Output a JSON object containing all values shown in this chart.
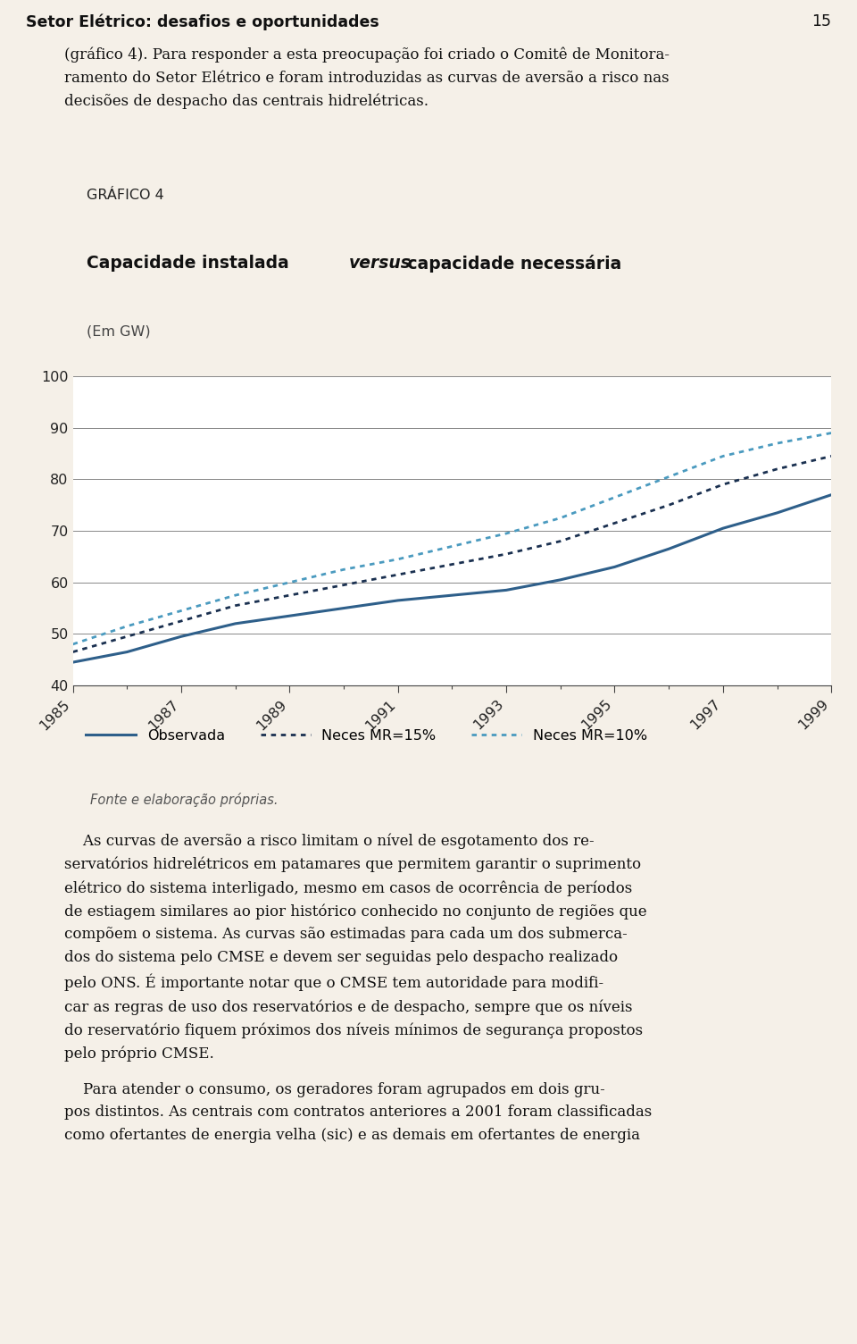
{
  "title_line1": "GRÁFICO 4",
  "title_line2_normal": "Capacidade instalada ",
  "title_line2_italic": "versus",
  "title_line2_end": " capacidade necessária",
  "subtitle": "(Em GW)",
  "fonte": "Fonte e elaboração próprias.",
  "years": [
    1985,
    1986,
    1987,
    1988,
    1989,
    1990,
    1991,
    1992,
    1993,
    1994,
    1995,
    1996,
    1997,
    1998,
    1999
  ],
  "observada": [
    44.5,
    46.5,
    49.5,
    52.0,
    53.5,
    55.0,
    56.5,
    57.5,
    58.5,
    60.5,
    63.0,
    66.5,
    70.5,
    73.5,
    77.0
  ],
  "neces_mr15": [
    46.5,
    49.5,
    52.5,
    55.5,
    57.5,
    59.5,
    61.5,
    63.5,
    65.5,
    68.0,
    71.5,
    75.0,
    79.0,
    82.0,
    84.5
  ],
  "neces_mr10": [
    48.0,
    51.5,
    54.5,
    57.5,
    60.0,
    62.5,
    64.5,
    67.0,
    69.5,
    72.5,
    76.5,
    80.5,
    84.5,
    87.0,
    89.0
  ],
  "color_observada": "#2e5f8a",
  "color_mr15": "#1a3050",
  "color_mr10": "#4a9abf",
  "ylim": [
    40,
    100
  ],
  "yticks": [
    40,
    50,
    60,
    70,
    80,
    90,
    100
  ],
  "bg_color": "#ffffff",
  "page_bg": "#f5f0e8",
  "header_text": "Setor Elétrico: desafios e oportunidades",
  "page_num": "15",
  "legend_observada": "Observada",
  "legend_mr15": "Neces MR=15%",
  "legend_mr10": "Neces MR=10%",
  "para_text": "(gráfico 4). Para responder a esta preocupação foi criado o Comitê de Monitora-\nramento do Setor Elétrico e foram introduzidas as curvas de aversão a risco nas\ndecisões de despacho das centrais hidrelétricas.",
  "bottom_text_1": "    As curvas de aversão a risco limitam o nível de esgotamento dos re-\nservatórios hidrelétricos em patamares que permitem garantir o suprimento\nelétrico do sistema interligado, mesmo em casos de ocorrência de períodos\nde estiagem similares ao pior histórico conhecido no conjunto de regiões que\ncompõem o sistema. As curvas são estimadas para cada um dos submerca-\ndos do sistema pelo CMSE e devem ser seguidas pelo despacho realizado\npelo ONS. É importante notar que o CMSE tem autoridade para modifi-\ncar as regras de uso dos reservatórios e de despacho, sempre que os níveis\ndo reservatório fiquem próximos dos níveis mínimos de segurança propostos\npelo próprio CMSE.",
  "bottom_text_2": "    Para atender o consumo, os geradores foram agrupados em dois gru-\npos distintos. As centrais com contratos anteriores a 2001 foram classificadas\ncomo ofertantes de energia velha (sic) e as demais em ofertantes de energia"
}
